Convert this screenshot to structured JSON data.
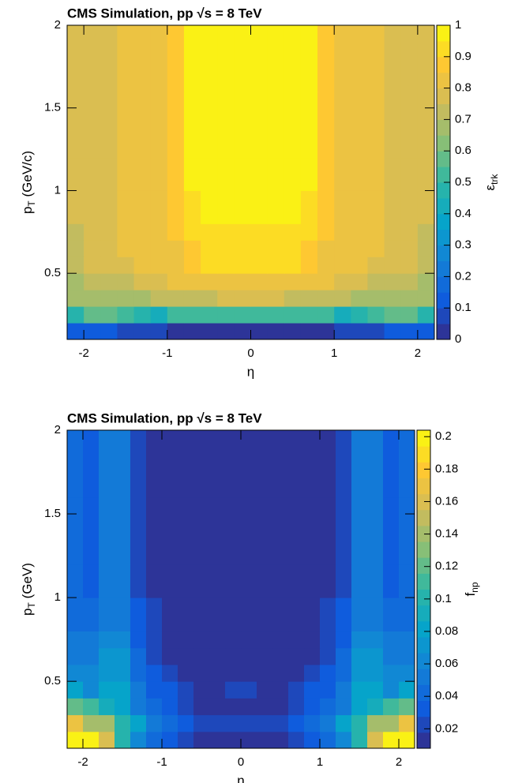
{
  "chart_data": [
    {
      "type": "heatmap",
      "title": "CMS Simulation, pp √s = 8 TeV",
      "xlabel": "η",
      "ylabel": [
        "p",
        "T",
        " (GeV/c)"
      ],
      "zlabel": [
        "ε",
        "trk"
      ],
      "x_edges": [
        -2.2,
        -2.0,
        -1.8,
        -1.6,
        -1.4,
        -1.2,
        -1.0,
        -0.8,
        -0.6,
        -0.4,
        -0.2,
        0,
        0.2,
        0.4,
        0.6,
        0.8,
        1.0,
        1.2,
        1.4,
        1.6,
        1.8,
        2.0,
        2.2
      ],
      "y_edges": [
        0.1,
        0.2,
        0.3,
        0.4,
        0.5,
        0.6,
        0.7,
        0.8,
        1.0,
        1.2,
        1.6,
        2.0
      ],
      "z": [
        [
          0.12,
          0.1,
          0.1,
          0.06,
          0.07,
          0.05,
          0.04,
          0.04,
          0.04,
          0.04,
          0.04,
          0.04,
          0.04,
          0.04,
          0.04,
          0.04,
          0.05,
          0.07,
          0.06,
          0.1,
          0.1,
          0.12
        ],
        [
          0.48,
          0.55,
          0.56,
          0.52,
          0.48,
          0.42,
          0.5,
          0.5,
          0.5,
          0.5,
          0.5,
          0.5,
          0.5,
          0.5,
          0.5,
          0.5,
          0.42,
          0.48,
          0.52,
          0.56,
          0.55,
          0.48
        ],
        [
          0.68,
          0.66,
          0.66,
          0.66,
          0.68,
          0.7,
          0.72,
          0.72,
          0.74,
          0.75,
          0.75,
          0.75,
          0.75,
          0.74,
          0.72,
          0.72,
          0.7,
          0.68,
          0.66,
          0.66,
          0.66,
          0.68
        ],
        [
          0.65,
          0.74,
          0.74,
          0.74,
          0.76,
          0.76,
          0.8,
          0.8,
          0.82,
          0.82,
          0.82,
          0.82,
          0.82,
          0.82,
          0.8,
          0.8,
          0.76,
          0.76,
          0.74,
          0.74,
          0.74,
          0.65
        ],
        [
          0.72,
          0.76,
          0.76,
          0.78,
          0.8,
          0.8,
          0.82,
          0.86,
          0.92,
          0.92,
          0.92,
          0.92,
          0.92,
          0.92,
          0.86,
          0.82,
          0.8,
          0.8,
          0.78,
          0.76,
          0.76,
          0.72
        ],
        [
          0.72,
          0.78,
          0.78,
          0.8,
          0.8,
          0.84,
          0.84,
          0.88,
          0.93,
          0.93,
          0.93,
          0.93,
          0.93,
          0.93,
          0.88,
          0.84,
          0.84,
          0.8,
          0.8,
          0.78,
          0.78,
          0.72
        ],
        [
          0.74,
          0.78,
          0.78,
          0.8,
          0.8,
          0.84,
          0.86,
          0.92,
          0.94,
          0.94,
          0.94,
          0.94,
          0.94,
          0.94,
          0.92,
          0.86,
          0.84,
          0.8,
          0.8,
          0.78,
          0.78,
          0.74
        ],
        [
          0.75,
          0.78,
          0.78,
          0.8,
          0.8,
          0.84,
          0.86,
          0.94,
          0.95,
          0.95,
          0.95,
          0.95,
          0.95,
          0.95,
          0.94,
          0.86,
          0.84,
          0.8,
          0.8,
          0.78,
          0.78,
          0.75
        ],
        [
          0.76,
          0.78,
          0.78,
          0.8,
          0.8,
          0.84,
          0.86,
          0.95,
          0.96,
          0.96,
          0.96,
          0.96,
          0.96,
          0.96,
          0.95,
          0.86,
          0.84,
          0.8,
          0.8,
          0.78,
          0.78,
          0.76
        ],
        [
          0.76,
          0.76,
          0.78,
          0.8,
          0.8,
          0.84,
          0.86,
          0.95,
          0.96,
          0.96,
          0.96,
          0.96,
          0.96,
          0.96,
          0.95,
          0.86,
          0.84,
          0.8,
          0.8,
          0.78,
          0.76,
          0.76
        ],
        [
          0.76,
          0.76,
          0.78,
          0.8,
          0.8,
          0.84,
          0.86,
          0.95,
          0.96,
          0.96,
          0.96,
          0.96,
          0.96,
          0.96,
          0.95,
          0.86,
          0.84,
          0.8,
          0.8,
          0.78,
          0.76,
          0.76
        ]
      ],
      "xlim": [
        -2.2,
        2.2
      ],
      "ylim": [
        0.1,
        2
      ],
      "zlim": [
        0,
        1
      ],
      "xticks": [
        -2,
        -1,
        0,
        1,
        2
      ],
      "yticks": [
        0.5,
        1,
        1.5,
        2
      ],
      "zticks": [
        0,
        0.1,
        0.2,
        0.3,
        0.4,
        0.5,
        0.6,
        0.7,
        0.8,
        0.9,
        1
      ],
      "contours": 20,
      "palette": [
        "#352a87",
        "#0f5cdd",
        "#1481d6",
        "#06a4ca",
        "#2eb7a4",
        "#87bf77",
        "#d1bb59",
        "#fec832",
        "#f9fb0e"
      ]
    },
    {
      "type": "heatmap",
      "title": "CMS Simulation, pp √s = 8 TeV",
      "xlabel": "η",
      "ylabel": [
        "p",
        "T",
        " (GeV)"
      ],
      "zlabel": [
        "f",
        "np"
      ],
      "x_edges": [
        -2.2,
        -2.0,
        -1.8,
        -1.6,
        -1.4,
        -1.2,
        -1.0,
        -0.8,
        -0.6,
        -0.4,
        -0.2,
        0,
        0.2,
        0.4,
        0.6,
        0.8,
        1.0,
        1.2,
        1.4,
        1.6,
        1.8,
        2.0,
        2.2
      ],
      "y_edges": [
        0.1,
        0.2,
        0.3,
        0.4,
        0.5,
        0.6,
        0.7,
        0.8,
        1.0,
        1.2,
        1.6,
        2.0
      ],
      "z": [
        [
          0.2,
          0.2,
          0.16,
          0.1,
          0.06,
          0.04,
          0.03,
          0.02,
          0.015,
          0.015,
          0.015,
          0.015,
          0.015,
          0.015,
          0.02,
          0.03,
          0.04,
          0.06,
          0.1,
          0.16,
          0.2,
          0.2
        ],
        [
          0.17,
          0.14,
          0.14,
          0.1,
          0.08,
          0.05,
          0.04,
          0.03,
          0.025,
          0.025,
          0.025,
          0.025,
          0.025,
          0.025,
          0.03,
          0.04,
          0.05,
          0.08,
          0.1,
          0.14,
          0.14,
          0.17
        ],
        [
          0.12,
          0.11,
          0.09,
          0.08,
          0.05,
          0.04,
          0.035,
          0.02,
          0.015,
          0.015,
          0.015,
          0.015,
          0.015,
          0.015,
          0.02,
          0.035,
          0.04,
          0.05,
          0.08,
          0.09,
          0.11,
          0.12
        ],
        [
          0.08,
          0.06,
          0.08,
          0.08,
          0.05,
          0.03,
          0.03,
          0.02,
          0.015,
          0.015,
          0.02,
          0.02,
          0.015,
          0.015,
          0.02,
          0.03,
          0.03,
          0.05,
          0.08,
          0.08,
          0.06,
          0.08
        ],
        [
          0.06,
          0.06,
          0.07,
          0.07,
          0.04,
          0.03,
          0.02,
          0.015,
          0.015,
          0.015,
          0.015,
          0.015,
          0.015,
          0.015,
          0.015,
          0.02,
          0.03,
          0.04,
          0.07,
          0.07,
          0.06,
          0.06
        ],
        [
          0.05,
          0.05,
          0.07,
          0.07,
          0.04,
          0.025,
          0.015,
          0.012,
          0.012,
          0.012,
          0.012,
          0.012,
          0.012,
          0.012,
          0.012,
          0.015,
          0.025,
          0.04,
          0.07,
          0.07,
          0.05,
          0.05
        ],
        [
          0.05,
          0.05,
          0.06,
          0.06,
          0.03,
          0.02,
          0.012,
          0.012,
          0.012,
          0.012,
          0.012,
          0.012,
          0.012,
          0.012,
          0.012,
          0.012,
          0.02,
          0.03,
          0.06,
          0.06,
          0.05,
          0.05
        ],
        [
          0.04,
          0.04,
          0.05,
          0.05,
          0.03,
          0.02,
          0.012,
          0.012,
          0.012,
          0.012,
          0.012,
          0.012,
          0.012,
          0.012,
          0.012,
          0.012,
          0.02,
          0.03,
          0.05,
          0.05,
          0.04,
          0.04
        ],
        [
          0.04,
          0.03,
          0.05,
          0.05,
          0.02,
          0.012,
          0.012,
          0.012,
          0.012,
          0.012,
          0.012,
          0.012,
          0.012,
          0.012,
          0.012,
          0.012,
          0.012,
          0.02,
          0.05,
          0.05,
          0.03,
          0.04
        ],
        [
          0.04,
          0.03,
          0.05,
          0.05,
          0.02,
          0.012,
          0.012,
          0.012,
          0.012,
          0.012,
          0.012,
          0.012,
          0.012,
          0.012,
          0.012,
          0.012,
          0.012,
          0.02,
          0.05,
          0.05,
          0.03,
          0.04
        ],
        [
          0.04,
          0.03,
          0.05,
          0.05,
          0.02,
          0.012,
          0.012,
          0.012,
          0.012,
          0.012,
          0.012,
          0.012,
          0.012,
          0.012,
          0.012,
          0.012,
          0.012,
          0.02,
          0.05,
          0.05,
          0.03,
          0.04
        ]
      ],
      "xlim": [
        -2.2,
        2.2
      ],
      "ylim": [
        0.1,
        2
      ],
      "zlim": [
        0.008,
        0.204
      ],
      "xticks": [
        -2,
        -1,
        0,
        1,
        2
      ],
      "yticks": [
        0.5,
        1,
        1.5,
        2
      ],
      "zticks": [
        0.02,
        0.04,
        0.06,
        0.08,
        0.1,
        0.12,
        0.14,
        0.16,
        0.18,
        0.2
      ],
      "contours": 20,
      "palette": [
        "#352a87",
        "#0f5cdd",
        "#1481d6",
        "#06a4ca",
        "#2eb7a4",
        "#87bf77",
        "#d1bb59",
        "#fec832",
        "#f9fb0e"
      ]
    }
  ]
}
